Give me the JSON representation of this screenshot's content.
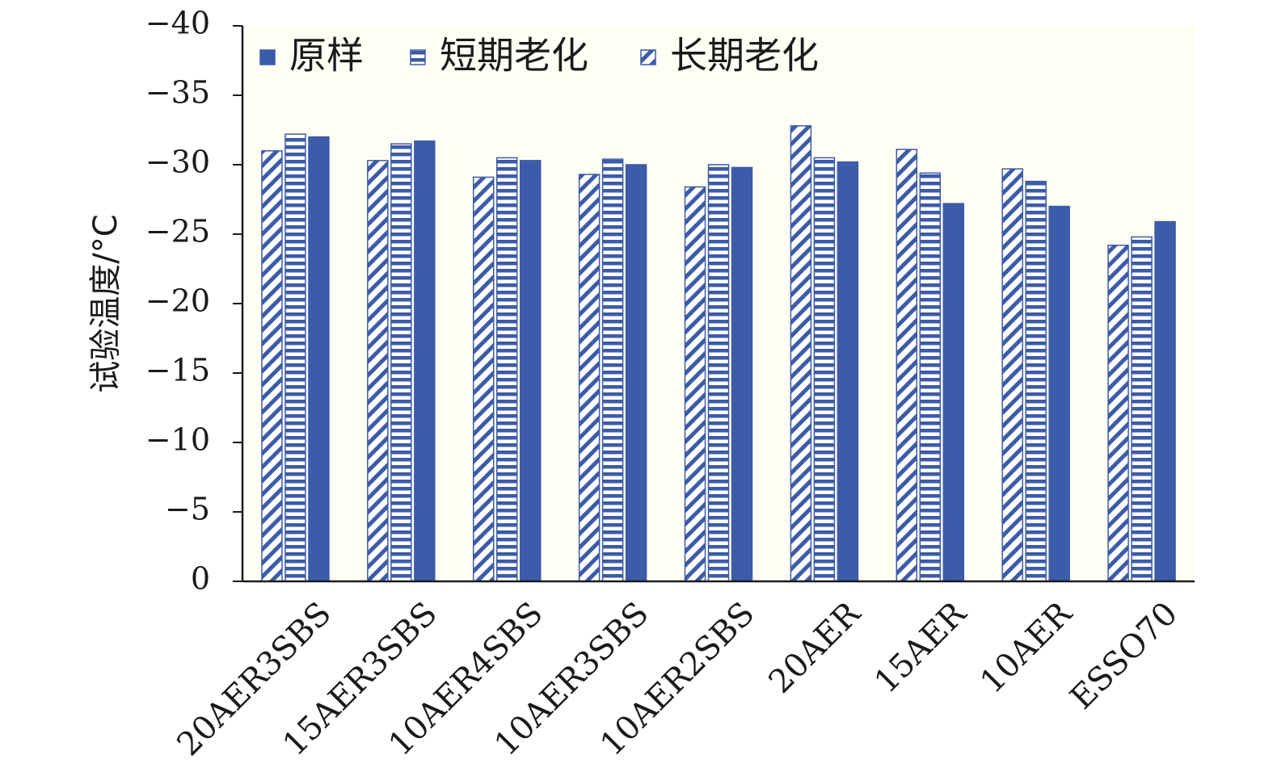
{
  "chart_data": {
    "type": "bar",
    "ylabel": "试验温度/°C",
    "xlabel": "",
    "ylim": [
      0,
      -40
    ],
    "yticks": [
      0,
      -5,
      -10,
      -15,
      -20,
      -25,
      -30,
      -35,
      -40
    ],
    "ytick_labels": [
      "0",
      "−5",
      "−10",
      "−15",
      "−20",
      "−25",
      "−30",
      "−35",
      "−40"
    ],
    "grid": false,
    "legend_position": "top-left",
    "categories": [
      "20AER3SBS",
      "15AER3SBS",
      "10AER4SBS",
      "10AER3SBS",
      "10AER2SBS",
      "20AER",
      "15AER",
      "10AER",
      "ESSO70"
    ],
    "series": [
      {
        "name": "长期老化",
        "pattern": "diagonal",
        "values": [
          -31.0,
          -30.3,
          -29.1,
          -29.3,
          -28.4,
          -32.8,
          -31.1,
          -29.7,
          -24.2
        ]
      },
      {
        "name": "短期老化",
        "pattern": "horizontal",
        "values": [
          -32.2,
          -31.5,
          -30.5,
          -30.4,
          -30.0,
          -30.5,
          -29.4,
          -28.8,
          -24.8
        ]
      },
      {
        "name": "原样",
        "pattern": "solid",
        "values": [
          -32.0,
          -31.7,
          -30.3,
          -30.0,
          -29.8,
          -30.2,
          -27.2,
          -27.0,
          -25.9
        ]
      }
    ],
    "legend_order": [
      "原样",
      "短期老化",
      "长期老化"
    ],
    "colors": {
      "bar": "#3c5ba8",
      "background": "#ffffff",
      "plot_background": "#fffef4",
      "axis": "#1a1a1a"
    }
  }
}
